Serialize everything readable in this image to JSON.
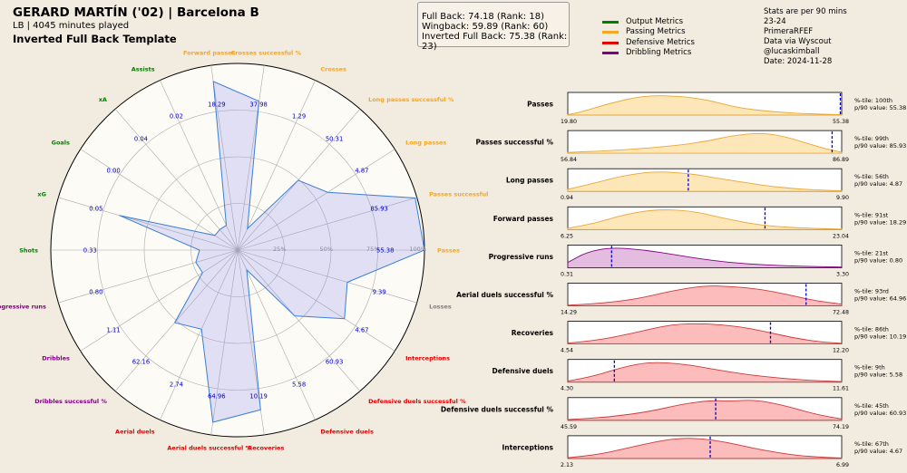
{
  "header": {
    "title": "GERARD MARTÍN ('02) | Barcelona B",
    "subtitle": "LB | 4045 minutes played",
    "template": "Inverted Full Back Template"
  },
  "scores": [
    "Full Back: 74.18 (Rank: 18)",
    "Wingback: 59.89 (Rank: 60)",
    "Inverted Full Back: 75.38 (Rank: 23)"
  ],
  "legend": [
    {
      "label": "Output Metrics",
      "color": "#008000"
    },
    {
      "label": "Passing Metrics",
      "color": "#f5a623"
    },
    {
      "label": "Defensive Metrics",
      "color": "#e00000"
    },
    {
      "label": "Dribbling Metrics",
      "color": "#800080"
    }
  ],
  "info": [
    "Stats are per 90 mins",
    "23-24",
    "PrimeraRFEF",
    "Data via Wyscout",
    "@lucaskimball",
    "Date: 2024-11-28"
  ],
  "chart_data": [
    {
      "type": "radar",
      "ring_labels": [
        "25%",
        "50%",
        "75%",
        "100%"
      ],
      "group_colors": {
        "output": "#008000",
        "passing": "#f5a623",
        "defensive": "#e00000",
        "dribbling": "#800080",
        "other": "#808080"
      },
      "metrics": [
        {
          "name": "Passes",
          "value": "55.38",
          "pct": 100,
          "group": "passing"
        },
        {
          "name": "Passes successful %",
          "value": "85.93",
          "pct": 99,
          "group": "passing"
        },
        {
          "name": "Long passes",
          "value": "4.87",
          "pct": 56,
          "group": "passing"
        },
        {
          "name": "Long passes successful %",
          "value": "50.31",
          "pct": 48,
          "group": "passing"
        },
        {
          "name": "Crosses",
          "value": "1.29",
          "pct": 10,
          "group": "passing"
        },
        {
          "name": "Crosses successful %",
          "value": "37.98",
          "pct": 80,
          "group": "passing"
        },
        {
          "name": "Forward passes",
          "value": "18.29",
          "pct": 91,
          "group": "passing"
        },
        {
          "name": "Assists",
          "value": "0.02",
          "pct": 12,
          "group": "output"
        },
        {
          "name": "xA",
          "value": "0.04",
          "pct": 12,
          "group": "output"
        },
        {
          "name": "Goals",
          "value": "0.00",
          "pct": 12,
          "group": "output"
        },
        {
          "name": "xG",
          "value": "0.05",
          "pct": 65,
          "group": "output"
        },
        {
          "name": "Shots",
          "value": "0.33",
          "pct": 18,
          "group": "output"
        },
        {
          "name": "Progressive runs",
          "value": "0.80",
          "pct": 21,
          "group": "dribbling"
        },
        {
          "name": "Dribbles",
          "value": "1.11",
          "pct": 20,
          "group": "dribbling"
        },
        {
          "name": "Dribbles successful %",
          "value": "62.16",
          "pct": 50,
          "group": "dribbling"
        },
        {
          "name": "Aerial duels",
          "value": "2.74",
          "pct": 45,
          "group": "defensive"
        },
        {
          "name": "Aerial duels successful %",
          "value": "64.96",
          "pct": 93,
          "group": "defensive"
        },
        {
          "name": "Recoveries",
          "value": "10.19",
          "pct": 86,
          "group": "defensive"
        },
        {
          "name": "Defensive duels",
          "value": "5.58",
          "pct": 9,
          "group": "defensive"
        },
        {
          "name": "Defensive duels successful %",
          "value": "60.93",
          "pct": 45,
          "group": "defensive"
        },
        {
          "name": "Interceptions",
          "value": "4.67",
          "pct": 67,
          "group": "defensive"
        },
        {
          "name": "Losses",
          "value": "9.39",
          "pct": 60,
          "group": "other"
        }
      ]
    },
    {
      "type": "area",
      "panels": [
        {
          "name": "Passes",
          "min": "19.80",
          "max": "55.38",
          "pct_text": "%-tile: 100th",
          "p90_text": "p/90 value: 55.38",
          "marker": 0.995,
          "peak": 0.28,
          "width": 0.16,
          "group": "passing",
          "shape": [
            [
              0.0,
              0.02
            ],
            [
              0.05,
              0.15
            ],
            [
              0.15,
              0.55
            ],
            [
              0.28,
              0.95
            ],
            [
              0.42,
              0.9
            ],
            [
              0.52,
              0.7
            ],
            [
              0.62,
              0.35
            ],
            [
              0.75,
              0.15
            ],
            [
              0.88,
              0.06
            ],
            [
              1.0,
              0.02
            ]
          ]
        },
        {
          "name": "Passes successful %",
          "min": "56.84",
          "max": "86.89",
          "pct_text": "%-tile: 99th",
          "p90_text": "p/90 value: 85.93",
          "marker": 0.965,
          "group": "passing",
          "shape": [
            [
              0.0,
              0.04
            ],
            [
              0.15,
              0.12
            ],
            [
              0.35,
              0.3
            ],
            [
              0.5,
              0.55
            ],
            [
              0.6,
              0.85
            ],
            [
              0.7,
              0.97
            ],
            [
              0.78,
              0.85
            ],
            [
              0.88,
              0.45
            ],
            [
              0.95,
              0.18
            ],
            [
              1.0,
              0.05
            ]
          ]
        },
        {
          "name": "Long passes",
          "min": "0.94",
          "max": "9.90",
          "pct_text": "%-tile: 56th",
          "p90_text": "p/90 value: 4.87",
          "marker": 0.44,
          "group": "passing",
          "shape": [
            [
              0.0,
              0.1
            ],
            [
              0.1,
              0.4
            ],
            [
              0.2,
              0.75
            ],
            [
              0.32,
              0.97
            ],
            [
              0.45,
              0.85
            ],
            [
              0.55,
              0.62
            ],
            [
              0.65,
              0.42
            ],
            [
              0.75,
              0.22
            ],
            [
              0.88,
              0.08
            ],
            [
              1.0,
              0.03
            ]
          ]
        },
        {
          "name": "Forward passes",
          "min": "6.25",
          "max": "23.04",
          "pct_text": "%-tile: 91st",
          "p90_text": "p/90 value: 18.29",
          "marker": 0.72,
          "group": "passing",
          "shape": [
            [
              0.0,
              0.06
            ],
            [
              0.1,
              0.3
            ],
            [
              0.2,
              0.7
            ],
            [
              0.32,
              0.97
            ],
            [
              0.45,
              0.9
            ],
            [
              0.55,
              0.6
            ],
            [
              0.65,
              0.32
            ],
            [
              0.75,
              0.15
            ],
            [
              0.88,
              0.06
            ],
            [
              1.0,
              0.02
            ]
          ]
        },
        {
          "name": "Progressive runs",
          "min": "0.31",
          "max": "3.30",
          "pct_text": "%-tile: 21st",
          "p90_text": "p/90 value: 0.80",
          "marker": 0.16,
          "group": "dribbling",
          "shape": [
            [
              0.0,
              0.25
            ],
            [
              0.07,
              0.75
            ],
            [
              0.16,
              0.97
            ],
            [
              0.28,
              0.85
            ],
            [
              0.4,
              0.6
            ],
            [
              0.52,
              0.35
            ],
            [
              0.65,
              0.18
            ],
            [
              0.78,
              0.1
            ],
            [
              0.9,
              0.05
            ],
            [
              1.0,
              0.03
            ]
          ]
        },
        {
          "name": "Aerial duels successful %",
          "min": "14.29",
          "max": "72.48",
          "pct_text": "%-tile: 93rd",
          "p90_text": "p/90 value: 64.96",
          "marker": 0.87,
          "group": "defensive",
          "shape": [
            [
              0.0,
              0.03
            ],
            [
              0.12,
              0.12
            ],
            [
              0.25,
              0.32
            ],
            [
              0.38,
              0.72
            ],
            [
              0.5,
              0.97
            ],
            [
              0.6,
              0.93
            ],
            [
              0.7,
              0.8
            ],
            [
              0.8,
              0.55
            ],
            [
              0.9,
              0.25
            ],
            [
              1.0,
              0.08
            ]
          ]
        },
        {
          "name": "Recoveries",
          "min": "4.54",
          "max": "12.20",
          "pct_text": "%-tile: 86th",
          "p90_text": "p/90 value: 10.19",
          "marker": 0.74,
          "group": "defensive",
          "shape": [
            [
              0.0,
              0.04
            ],
            [
              0.12,
              0.2
            ],
            [
              0.25,
              0.55
            ],
            [
              0.38,
              0.95
            ],
            [
              0.5,
              0.98
            ],
            [
              0.62,
              0.85
            ],
            [
              0.72,
              0.6
            ],
            [
              0.82,
              0.3
            ],
            [
              0.92,
              0.1
            ],
            [
              1.0,
              0.03
            ]
          ]
        },
        {
          "name": "Defensive duels",
          "min": "4.30",
          "max": "11.61",
          "pct_text": "%-tile: 9th",
          "p90_text": "p/90 value: 5.58",
          "marker": 0.17,
          "group": "defensive",
          "shape": [
            [
              0.0,
              0.05
            ],
            [
              0.1,
              0.3
            ],
            [
              0.2,
              0.72
            ],
            [
              0.3,
              0.97
            ],
            [
              0.42,
              0.88
            ],
            [
              0.54,
              0.6
            ],
            [
              0.66,
              0.35
            ],
            [
              0.78,
              0.18
            ],
            [
              0.9,
              0.07
            ],
            [
              1.0,
              0.03
            ]
          ]
        },
        {
          "name": "Defensive duels successful %",
          "min": "45.59",
          "max": "74.19",
          "pct_text": "%-tile: 45th",
          "p90_text": "p/90 value: 60.93",
          "marker": 0.54,
          "group": "defensive",
          "shape": [
            [
              0.0,
              0.03
            ],
            [
              0.15,
              0.15
            ],
            [
              0.3,
              0.42
            ],
            [
              0.42,
              0.78
            ],
            [
              0.52,
              0.95
            ],
            [
              0.6,
              0.92
            ],
            [
              0.68,
              0.98
            ],
            [
              0.78,
              0.75
            ],
            [
              0.9,
              0.3
            ],
            [
              1.0,
              0.06
            ]
          ]
        },
        {
          "name": "Interceptions",
          "min": "2.13",
          "max": "6.99",
          "pct_text": "%-tile: 67th",
          "p90_text": "p/90 value: 4.67",
          "marker": 0.52,
          "group": "defensive",
          "shape": [
            [
              0.0,
              0.03
            ],
            [
              0.12,
              0.2
            ],
            [
              0.25,
              0.6
            ],
            [
              0.38,
              0.95
            ],
            [
              0.48,
              0.97
            ],
            [
              0.58,
              0.78
            ],
            [
              0.68,
              0.48
            ],
            [
              0.8,
              0.2
            ],
            [
              0.9,
              0.07
            ],
            [
              1.0,
              0.02
            ]
          ]
        }
      ],
      "fills": {
        "passing": "#fde6b8",
        "dribbling": "#e4bce0",
        "defensive": "#fdbcbc"
      },
      "strokes": {
        "passing": "#e8a83a",
        "dribbling": "#800080",
        "defensive": "#d03a3a"
      }
    }
  ]
}
